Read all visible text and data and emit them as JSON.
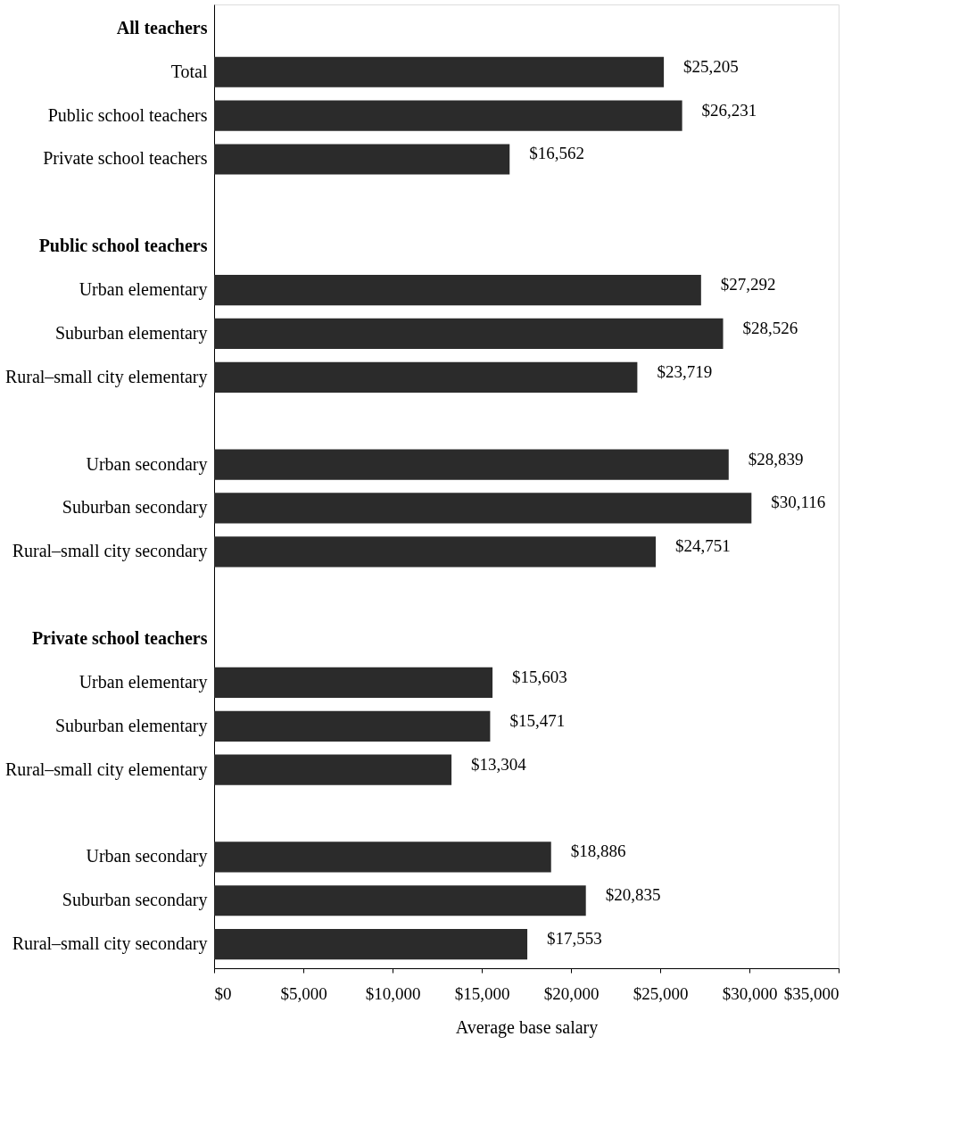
{
  "chart_data": {
    "type": "bar",
    "orientation": "horizontal",
    "xlabel": "Average base salary",
    "categories": [
      "All teachers",
      "Total",
      "Public school teachers",
      "Private school teachers",
      null,
      "Public school teachers",
      "Urban elementary",
      "Suburban elementary",
      "Rural–small city elementary",
      null,
      "Urban secondary",
      "Suburban secondary",
      "Rural–small city secondary",
      null,
      "Private school teachers",
      "Urban elementary",
      "Suburban elementary",
      "Rural–small city elementary",
      null,
      "Urban secondary",
      "Suburban secondary",
      "Rural–small city secondary"
    ],
    "values": [
      null,
      25205,
      26231,
      16562,
      null,
      null,
      27292,
      28526,
      23719,
      null,
      28839,
      30116,
      24751,
      null,
      null,
      15603,
      15471,
      13304,
      null,
      18886,
      20835,
      17553
    ],
    "value_labels": [
      null,
      "$25,205",
      "$26,231",
      "$16,562",
      null,
      null,
      "$27,292",
      "$28,526",
      "$23,719",
      null,
      "$28,839",
      "$30,116",
      "$24,751",
      null,
      null,
      "$15,603",
      "$15,471",
      "$13,304",
      null,
      "$18,886",
      "$20,835",
      "$17,553"
    ],
    "color": "#2b2b2b",
    "xlim": [
      0,
      35000
    ],
    "xticks": [
      {
        "value": 0,
        "label": "$0"
      },
      {
        "value": 5000,
        "label": "$5,000"
      },
      {
        "value": 10000,
        "label": "$10,000"
      },
      {
        "value": 15000,
        "label": "$15,000"
      },
      {
        "value": 20000,
        "label": "$20,000"
      },
      {
        "value": 25000,
        "label": "$25,000"
      },
      {
        "value": 30000,
        "label": "$30,000"
      },
      {
        "value": 35000,
        "label": "$35,000"
      }
    ],
    "grid": false
  }
}
